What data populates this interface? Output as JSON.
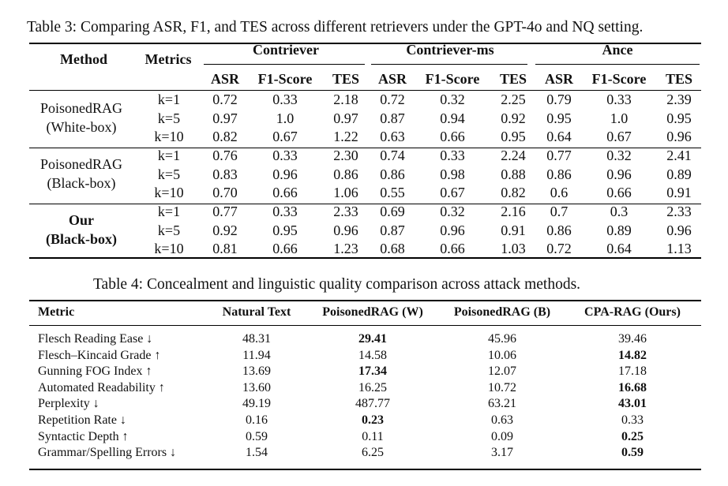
{
  "table3": {
    "caption": "Table 3: Comparing ASR, F1, and TES across different retrievers under the GPT-4o and NQ setting.",
    "method_header": "Method",
    "metrics_header": "Metrics",
    "retrievers": [
      "Contriever",
      "Contriever-ms",
      "Ance"
    ],
    "sub_headers": [
      "ASR",
      "F1-Score",
      "TES"
    ],
    "groups": [
      {
        "method_line1": "PoisonedRAG",
        "method_line2": "(White-box)",
        "bold": false,
        "rows": [
          {
            "k": "k=1",
            "vals": [
              "0.72",
              "0.33",
              "2.18",
              "0.72",
              "0.32",
              "2.25",
              "0.79",
              "0.33",
              "2.39"
            ]
          },
          {
            "k": "k=5",
            "vals": [
              "0.97",
              "1.0",
              "0.97",
              "0.87",
              "0.94",
              "0.92",
              "0.95",
              "1.0",
              "0.95"
            ]
          },
          {
            "k": "k=10",
            "vals": [
              "0.82",
              "0.67",
              "1.22",
              "0.63",
              "0.66",
              "0.95",
              "0.64",
              "0.67",
              "0.96"
            ]
          }
        ]
      },
      {
        "method_line1": "PoisonedRAG",
        "method_line2": "(Black-box)",
        "bold": false,
        "rows": [
          {
            "k": "k=1",
            "vals": [
              "0.76",
              "0.33",
              "2.30",
              "0.74",
              "0.33",
              "2.24",
              "0.77",
              "0.32",
              "2.41"
            ]
          },
          {
            "k": "k=5",
            "vals": [
              "0.83",
              "0.96",
              "0.86",
              "0.86",
              "0.98",
              "0.88",
              "0.86",
              "0.96",
              "0.89"
            ]
          },
          {
            "k": "k=10",
            "vals": [
              "0.70",
              "0.66",
              "1.06",
              "0.55",
              "0.67",
              "0.82",
              "0.6",
              "0.66",
              "0.91"
            ]
          }
        ]
      },
      {
        "method_line1": "Our",
        "method_line2": "(Black-box)",
        "bold": true,
        "rows": [
          {
            "k": "k=1",
            "vals": [
              "0.77",
              "0.33",
              "2.33",
              "0.69",
              "0.32",
              "2.16",
              "0.7",
              "0.3",
              "2.33"
            ]
          },
          {
            "k": "k=5",
            "vals": [
              "0.92",
              "0.95",
              "0.96",
              "0.87",
              "0.96",
              "0.91",
              "0.86",
              "0.89",
              "0.96"
            ]
          },
          {
            "k": "k=10",
            "vals": [
              "0.81",
              "0.66",
              "1.23",
              "0.68",
              "0.66",
              "1.03",
              "0.72",
              "0.64",
              "1.13"
            ]
          }
        ]
      }
    ]
  },
  "table4": {
    "caption": "Table 4: Concealment and linguistic quality comparison across attack methods.",
    "headers": [
      "Metric",
      "Natural Text",
      "PoisonedRAG (W)",
      "PoisonedRAG (B)",
      "CPA-RAG (Ours)"
    ],
    "rows": [
      {
        "metric": "Flesch Reading Ease ↓",
        "vals": [
          "48.31",
          "29.41",
          "45.96",
          "39.46"
        ],
        "bold_col": 1
      },
      {
        "metric": "Flesch–Kincaid Grade ↑",
        "vals": [
          "11.94",
          "14.58",
          "10.06",
          "14.82"
        ],
        "bold_col": 3
      },
      {
        "metric": "Gunning FOG Index ↑",
        "vals": [
          "13.69",
          "17.34",
          "12.07",
          "17.18"
        ],
        "bold_col": 1
      },
      {
        "metric": "Automated Readability ↑",
        "vals": [
          "13.60",
          "16.25",
          "10.72",
          "16.68"
        ],
        "bold_col": 3
      },
      {
        "metric": "Perplexity ↓",
        "vals": [
          "49.19",
          "487.77",
          "63.21",
          "43.01"
        ],
        "bold_col": 3
      },
      {
        "metric": "Repetition Rate ↓",
        "vals": [
          "0.16",
          "0.23",
          "0.63",
          "0.33"
        ],
        "bold_col": 1
      },
      {
        "metric": "Syntactic Depth ↑",
        "vals": [
          "0.59",
          "0.11",
          "0.09",
          "0.25"
        ],
        "bold_col": 3
      },
      {
        "metric": "Grammar/Spelling Errors ↓",
        "vals": [
          "1.54",
          "6.25",
          "3.17",
          "0.59"
        ],
        "bold_col": 3
      }
    ]
  }
}
